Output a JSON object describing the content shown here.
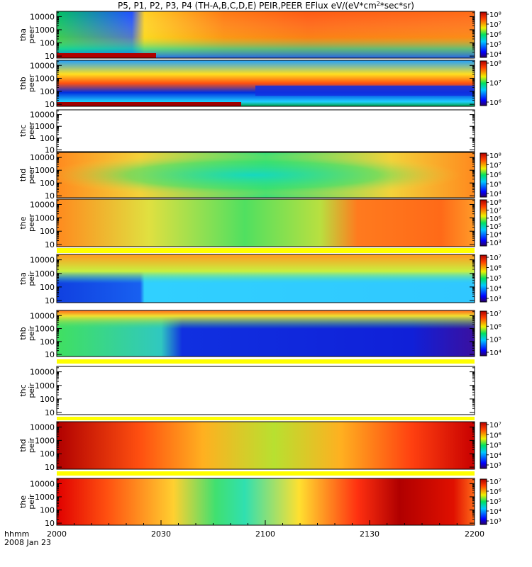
{
  "chart_data": {
    "type": "heatmap",
    "title": "P5, P1, P2, P3, P4 (TH-A,B,C,D,E) PEIR,PEER EFlux eV/(eV*cm",
    "title_sup": "2",
    "title_tail": "*sec*sr)",
    "x_ticks": [
      "2000",
      "2030",
      "2100",
      "2130",
      "2200"
    ],
    "x_range_hhmm": [
      "2000",
      "2200"
    ],
    "x_corner_label": "hhmm",
    "date_label": "2008 Jan 23",
    "y_scale": "log",
    "y_ticks": [
      "10",
      "100",
      "1000",
      "10000"
    ],
    "colorbar_scale": "log",
    "panels": [
      {
        "line1": "tha",
        "line2": "peer",
        "has_data": true,
        "cbar": [
          "10^8",
          "10^7",
          "10^6",
          "10^5",
          "10^4"
        ]
      },
      {
        "line1": "thb",
        "line2": "peer",
        "has_data": true,
        "cbar": [
          "10^8",
          "10^7",
          "10^6"
        ]
      },
      {
        "line1": "thc",
        "line2": "peer",
        "has_data": false,
        "cbar": []
      },
      {
        "line1": "thd",
        "line2": "peer",
        "has_data": true,
        "cbar": [
          "10^8",
          "10^7",
          "10^6",
          "10^5",
          "10^4"
        ]
      },
      {
        "line1": "the",
        "line2": "peer",
        "has_data": true,
        "cbar": [
          "10^8",
          "10^7",
          "10^6",
          "10^5",
          "10^4",
          "10^3"
        ]
      },
      {
        "line1": "tha",
        "line2": "peir",
        "has_data": true,
        "cbar": [
          "10^7",
          "10^6",
          "10^5",
          "10^4",
          "10^3"
        ]
      },
      {
        "line1": "thb",
        "line2": "peir",
        "has_data": true,
        "cbar": [
          "10^7",
          "10^6",
          "10^5",
          "10^4"
        ]
      },
      {
        "line1": "thc",
        "line2": "peir",
        "has_data": false,
        "cbar": []
      },
      {
        "line1": "thd",
        "line2": "peir",
        "has_data": true,
        "cbar": [
          "10^7",
          "10^6",
          "10^5",
          "10^4",
          "10^3"
        ]
      },
      {
        "line1": "the",
        "line2": "peir",
        "has_data": true,
        "cbar": [
          "10^7",
          "10^6",
          "10^5",
          "10^4",
          "10^3"
        ]
      }
    ]
  }
}
